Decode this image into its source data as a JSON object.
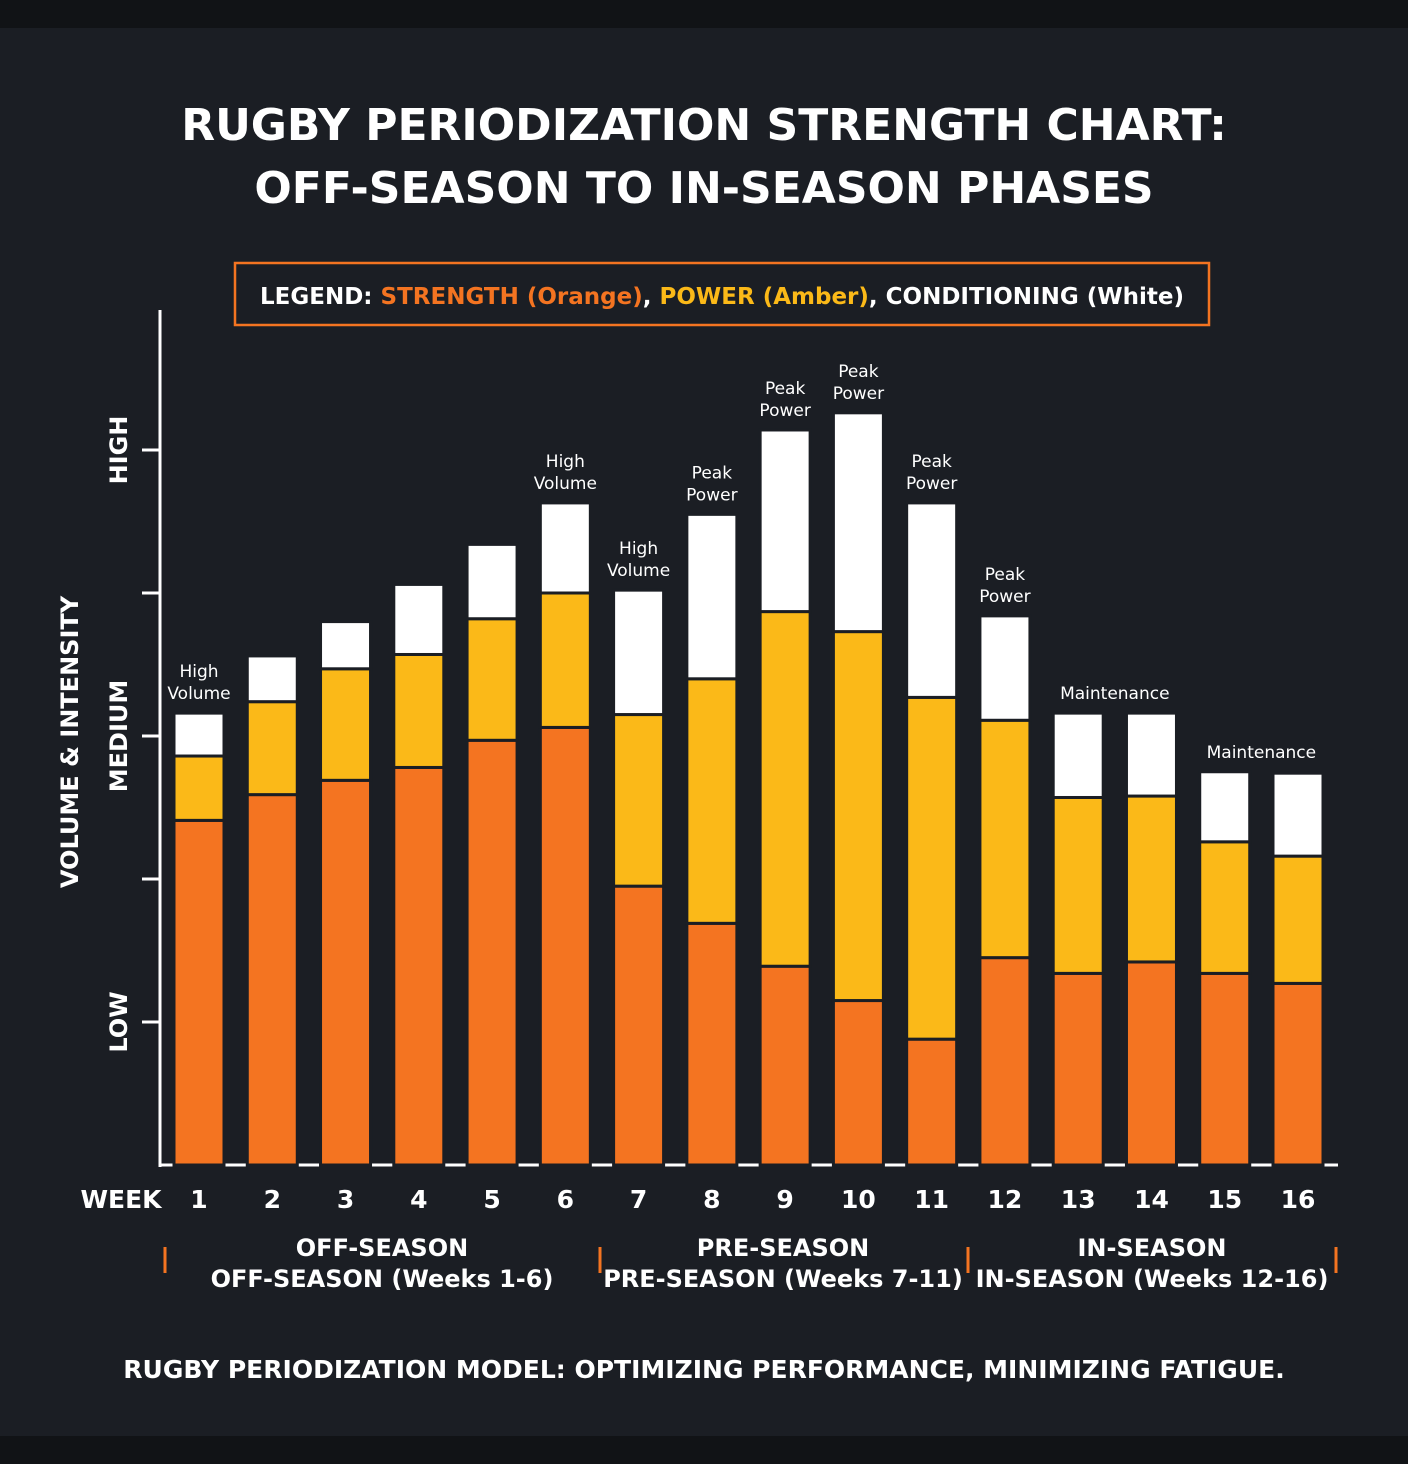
{
  "chart_data": {
    "type": "bar",
    "stacked": true,
    "title": [
      "RUGBY PERIODIZATION STRENGTH CHART:",
      "OFF-SEASON TO IN-SEASON PHASES"
    ],
    "legend": {
      "prefix": "LEGEND: ",
      "placement": "top",
      "entries": [
        {
          "label": "STRENGTH (Orange)",
          "color": "#f47421"
        },
        {
          "label": "POWER (Amber)",
          "color": "#fbb918"
        },
        {
          "label": "CONDITIONING (White)",
          "color": "#ffffff"
        }
      ],
      "separator": ", "
    },
    "xlabel": "WEEK",
    "ylabel": "VOLUME & INTENSITY",
    "y_ticks": [
      {
        "value": 1,
        "label": "LOW"
      },
      {
        "value": 2,
        "label": ""
      },
      {
        "value": 3,
        "label": "MEDIUM"
      },
      {
        "value": 4,
        "label": ""
      },
      {
        "value": 5,
        "label": "HIGH"
      }
    ],
    "ylim": [
      0,
      6
    ],
    "grid": false,
    "categories": [
      "1",
      "2",
      "3",
      "4",
      "5",
      "6",
      "7",
      "8",
      "9",
      "10",
      "11",
      "12",
      "13",
      "14",
      "15",
      "16"
    ],
    "series": [
      {
        "name": "STRENGTH",
        "color": "#f47421",
        "values": [
          2.41,
          2.59,
          2.69,
          2.78,
          2.97,
          3.06,
          1.95,
          1.69,
          1.39,
          1.15,
          0.88,
          1.45,
          1.34,
          1.42,
          1.34,
          1.27
        ]
      },
      {
        "name": "POWER",
        "color": "#fbb918",
        "values": [
          0.45,
          0.65,
          0.78,
          0.79,
          0.85,
          0.94,
          1.2,
          1.71,
          2.48,
          2.58,
          2.39,
          1.66,
          1.23,
          1.16,
          0.92,
          0.89
        ]
      },
      {
        "name": "CONDITIONING",
        "color": "#ffffff",
        "values": [
          0.3,
          0.32,
          0.33,
          0.49,
          0.52,
          0.63,
          0.87,
          1.15,
          1.27,
          1.53,
          1.36,
          0.73,
          0.59,
          0.58,
          0.49,
          0.58
        ]
      }
    ],
    "annotations": [
      {
        "weeks": [
          1
        ],
        "lines": [
          "High",
          "Volume"
        ]
      },
      {
        "weeks": [
          6
        ],
        "lines": [
          "High",
          "Volume"
        ]
      },
      {
        "weeks": [
          7
        ],
        "lines": [
          "High",
          "Volume"
        ]
      },
      {
        "weeks": [
          8
        ],
        "lines": [
          "Peak",
          "Power"
        ]
      },
      {
        "weeks": [
          9
        ],
        "lines": [
          "Peak",
          "Power"
        ]
      },
      {
        "weeks": [
          10
        ],
        "lines": [
          "Peak",
          "Power"
        ]
      },
      {
        "weeks": [
          11
        ],
        "lines": [
          "Peak",
          "Power"
        ]
      },
      {
        "weeks": [
          12
        ],
        "lines": [
          "Peak",
          "Power"
        ]
      },
      {
        "weeks": [
          13,
          14
        ],
        "lines": [
          "Maintenance"
        ]
      },
      {
        "weeks": [
          15,
          16
        ],
        "lines": [
          "Maintenance"
        ]
      }
    ],
    "phases": [
      {
        "name": "OFF-SEASON",
        "detail": "OFF-SEASON (Weeks 1-6)",
        "weeks": [
          1,
          6
        ]
      },
      {
        "name": "PRE-SEASON",
        "detail": "PRE-SEASON (Weeks 7-11)",
        "weeks": [
          7,
          11
        ]
      },
      {
        "name": "IN-SEASON",
        "detail": "IN-SEASON (Weeks 12-16)",
        "weeks": [
          12,
          16
        ]
      }
    ],
    "phase_marker_color": "#f47421",
    "footer": "RUGBY PERIODIZATION MODEL: OPTIMIZING PERFORMANCE, MINIMIZING FATIGUE.",
    "background_color": "#1b1e24"
  }
}
